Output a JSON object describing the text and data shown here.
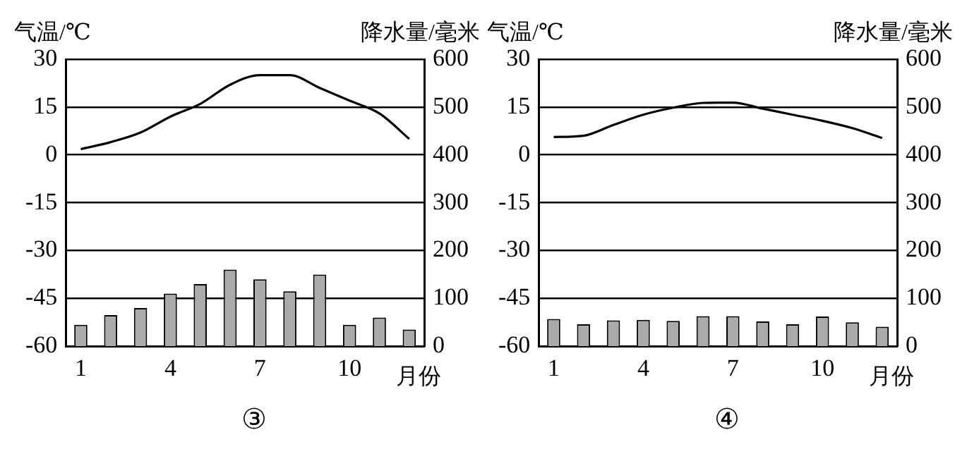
{
  "chart_data": [
    {
      "type": "bar",
      "categories": [
        "1",
        null,
        null,
        "4",
        null,
        null,
        "7",
        null,
        null,
        "10",
        null,
        null
      ],
      "ylabel": "气温/℃",
      "y2label": "降水量/毫米",
      "xlabel": "月份",
      "annotations": [
        "③"
      ],
      "series": [
        {
          "axis": "y2",
          "color": "#aaaaaa",
          "values": [
            45,
            65,
            80,
            110,
            130,
            160,
            140,
            115,
            150,
            45,
            60,
            35
          ]
        },
        {
          "type": "line",
          "color": "#000000",
          "values": [
            1.8,
            4,
            7,
            12,
            16,
            22,
            25,
            25,
            21,
            17,
            13,
            5
          ]
        }
      ],
      "ylim": [
        -60,
        30
      ],
      "yticks": [
        -60,
        -45,
        -30,
        -15,
        0,
        15,
        30
      ],
      "y2lim": [
        0,
        600
      ],
      "y2ticks": [
        0,
        100,
        200,
        300,
        400,
        500,
        600
      ],
      "grid": "y",
      "marker": "none"
    },
    {
      "type": "bar",
      "categories": [
        "1",
        null,
        null,
        "4",
        null,
        null,
        "7",
        null,
        null,
        "10",
        null,
        null
      ],
      "ylabel": "气温/℃",
      "y2label": "降水量/毫米",
      "xlabel": "月份",
      "annotations": [
        "④"
      ],
      "series": [
        {
          "axis": "y2",
          "color": "#aaaaaa",
          "values": [
            57,
            46,
            54,
            55,
            53,
            63,
            63,
            52,
            46,
            62,
            50,
            41
          ]
        },
        {
          "type": "line",
          "color": "#000000",
          "values": [
            5.6,
            6,
            9.4,
            12.6,
            14.8,
            16.3,
            16.4,
            14.5,
            12.6,
            10.7,
            8.4,
            5.3
          ]
        }
      ],
      "ylim": [
        -60,
        30
      ],
      "yticks": [
        -60,
        -45,
        -30,
        -15,
        0,
        15,
        30
      ],
      "y2lim": [
        0,
        600
      ],
      "y2ticks": [
        0,
        100,
        200,
        300,
        400,
        500,
        600
      ],
      "grid": "y",
      "marker": "none"
    }
  ]
}
